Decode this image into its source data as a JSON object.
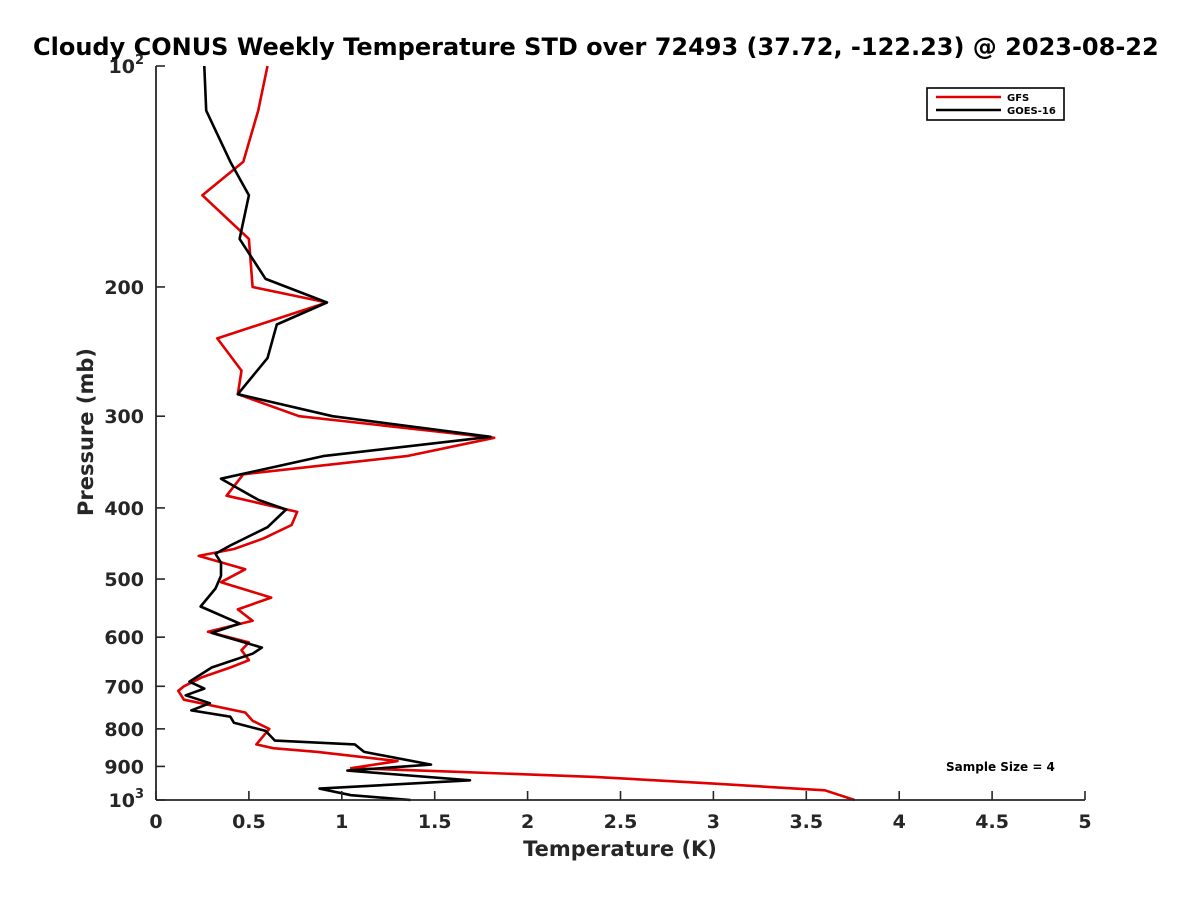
{
  "chart_data": {
    "type": "line",
    "title": "Cloudy CONUS Weekly Temperature STD over 72493 (37.72, -122.23) @ 2023-08-22",
    "xlabel": "Temperature (K)",
    "ylabel": "Pressure (mb)",
    "xlim": [
      0,
      5
    ],
    "ylim": [
      100,
      1000
    ],
    "y_scale": "log",
    "y_reversed": true,
    "grid": false,
    "legend_position": "top-right",
    "x_ticks": [
      "0",
      "0.5",
      "1",
      "1.5",
      "2",
      "2.5",
      "3",
      "3.5",
      "4",
      "4.5",
      "5"
    ],
    "y_ticks": [
      {
        "value": 100,
        "base": "10",
        "exp": "2"
      },
      {
        "value": 200,
        "base": "200",
        "exp": ""
      },
      {
        "value": 300,
        "base": "300",
        "exp": ""
      },
      {
        "value": 400,
        "base": "400",
        "exp": ""
      },
      {
        "value": 500,
        "base": "500",
        "exp": ""
      },
      {
        "value": 600,
        "base": "600",
        "exp": ""
      },
      {
        "value": 700,
        "base": "700",
        "exp": ""
      },
      {
        "value": 800,
        "base": "800",
        "exp": ""
      },
      {
        "value": 900,
        "base": "900",
        "exp": ""
      },
      {
        "value": 1000,
        "base": "10",
        "exp": "3"
      }
    ],
    "annotation": "Sample Size = 4",
    "series": [
      {
        "name": "GFS",
        "color": "#e00000",
        "points": [
          [
            0.6,
            100
          ],
          [
            0.55,
            115
          ],
          [
            0.47,
            135
          ],
          [
            0.25,
            150
          ],
          [
            0.5,
            172
          ],
          [
            0.52,
            200
          ],
          [
            0.92,
            210
          ],
          [
            0.33,
            235
          ],
          [
            0.46,
            260
          ],
          [
            0.44,
            280
          ],
          [
            0.77,
            300
          ],
          [
            1.82,
            321
          ],
          [
            1.35,
            340
          ],
          [
            0.47,
            360
          ],
          [
            0.38,
            385
          ],
          [
            0.76,
            405
          ],
          [
            0.73,
            422
          ],
          [
            0.58,
            440
          ],
          [
            0.42,
            455
          ],
          [
            0.23,
            465
          ],
          [
            0.48,
            485
          ],
          [
            0.35,
            505
          ],
          [
            0.62,
            530
          ],
          [
            0.44,
            550
          ],
          [
            0.52,
            570
          ],
          [
            0.28,
            590
          ],
          [
            0.5,
            610
          ],
          [
            0.46,
            625
          ],
          [
            0.5,
            645
          ],
          [
            0.4,
            660
          ],
          [
            0.25,
            680
          ],
          [
            0.15,
            700
          ],
          [
            0.12,
            710
          ],
          [
            0.15,
            730
          ],
          [
            0.48,
            760
          ],
          [
            0.52,
            780
          ],
          [
            0.61,
            800
          ],
          [
            0.54,
            840
          ],
          [
            0.63,
            850
          ],
          [
            0.87,
            860
          ],
          [
            1.3,
            885
          ],
          [
            1.05,
            905
          ],
          [
            1.6,
            915
          ],
          [
            2.36,
            930
          ],
          [
            3.0,
            950
          ],
          [
            3.6,
            970
          ],
          [
            3.76,
            1000
          ]
        ]
      },
      {
        "name": "GOES-16",
        "color": "#000000",
        "points": [
          [
            0.26,
            100
          ],
          [
            0.27,
            115
          ],
          [
            0.4,
            135
          ],
          [
            0.5,
            150
          ],
          [
            0.45,
            172
          ],
          [
            0.59,
            195
          ],
          [
            0.92,
            210
          ],
          [
            0.65,
            225
          ],
          [
            0.6,
            250
          ],
          [
            0.44,
            280
          ],
          [
            0.95,
            300
          ],
          [
            1.8,
            320
          ],
          [
            0.9,
            340
          ],
          [
            0.35,
            365
          ],
          [
            0.55,
            390
          ],
          [
            0.7,
            402
          ],
          [
            0.6,
            425
          ],
          [
            0.4,
            450
          ],
          [
            0.32,
            462
          ],
          [
            0.35,
            475
          ],
          [
            0.35,
            495
          ],
          [
            0.32,
            515
          ],
          [
            0.24,
            545
          ],
          [
            0.45,
            575
          ],
          [
            0.3,
            592
          ],
          [
            0.57,
            620
          ],
          [
            0.52,
            632
          ],
          [
            0.3,
            660
          ],
          [
            0.18,
            690
          ],
          [
            0.26,
            705
          ],
          [
            0.16,
            720
          ],
          [
            0.29,
            738
          ],
          [
            0.19,
            755
          ],
          [
            0.4,
            770
          ],
          [
            0.42,
            785
          ],
          [
            0.59,
            805
          ],
          [
            0.64,
            830
          ],
          [
            1.07,
            840
          ],
          [
            1.12,
            860
          ],
          [
            1.48,
            895
          ],
          [
            1.03,
            912
          ],
          [
            1.69,
            940
          ],
          [
            0.88,
            965
          ],
          [
            1.05,
            985
          ],
          [
            1.37,
            1000
          ]
        ]
      }
    ]
  }
}
